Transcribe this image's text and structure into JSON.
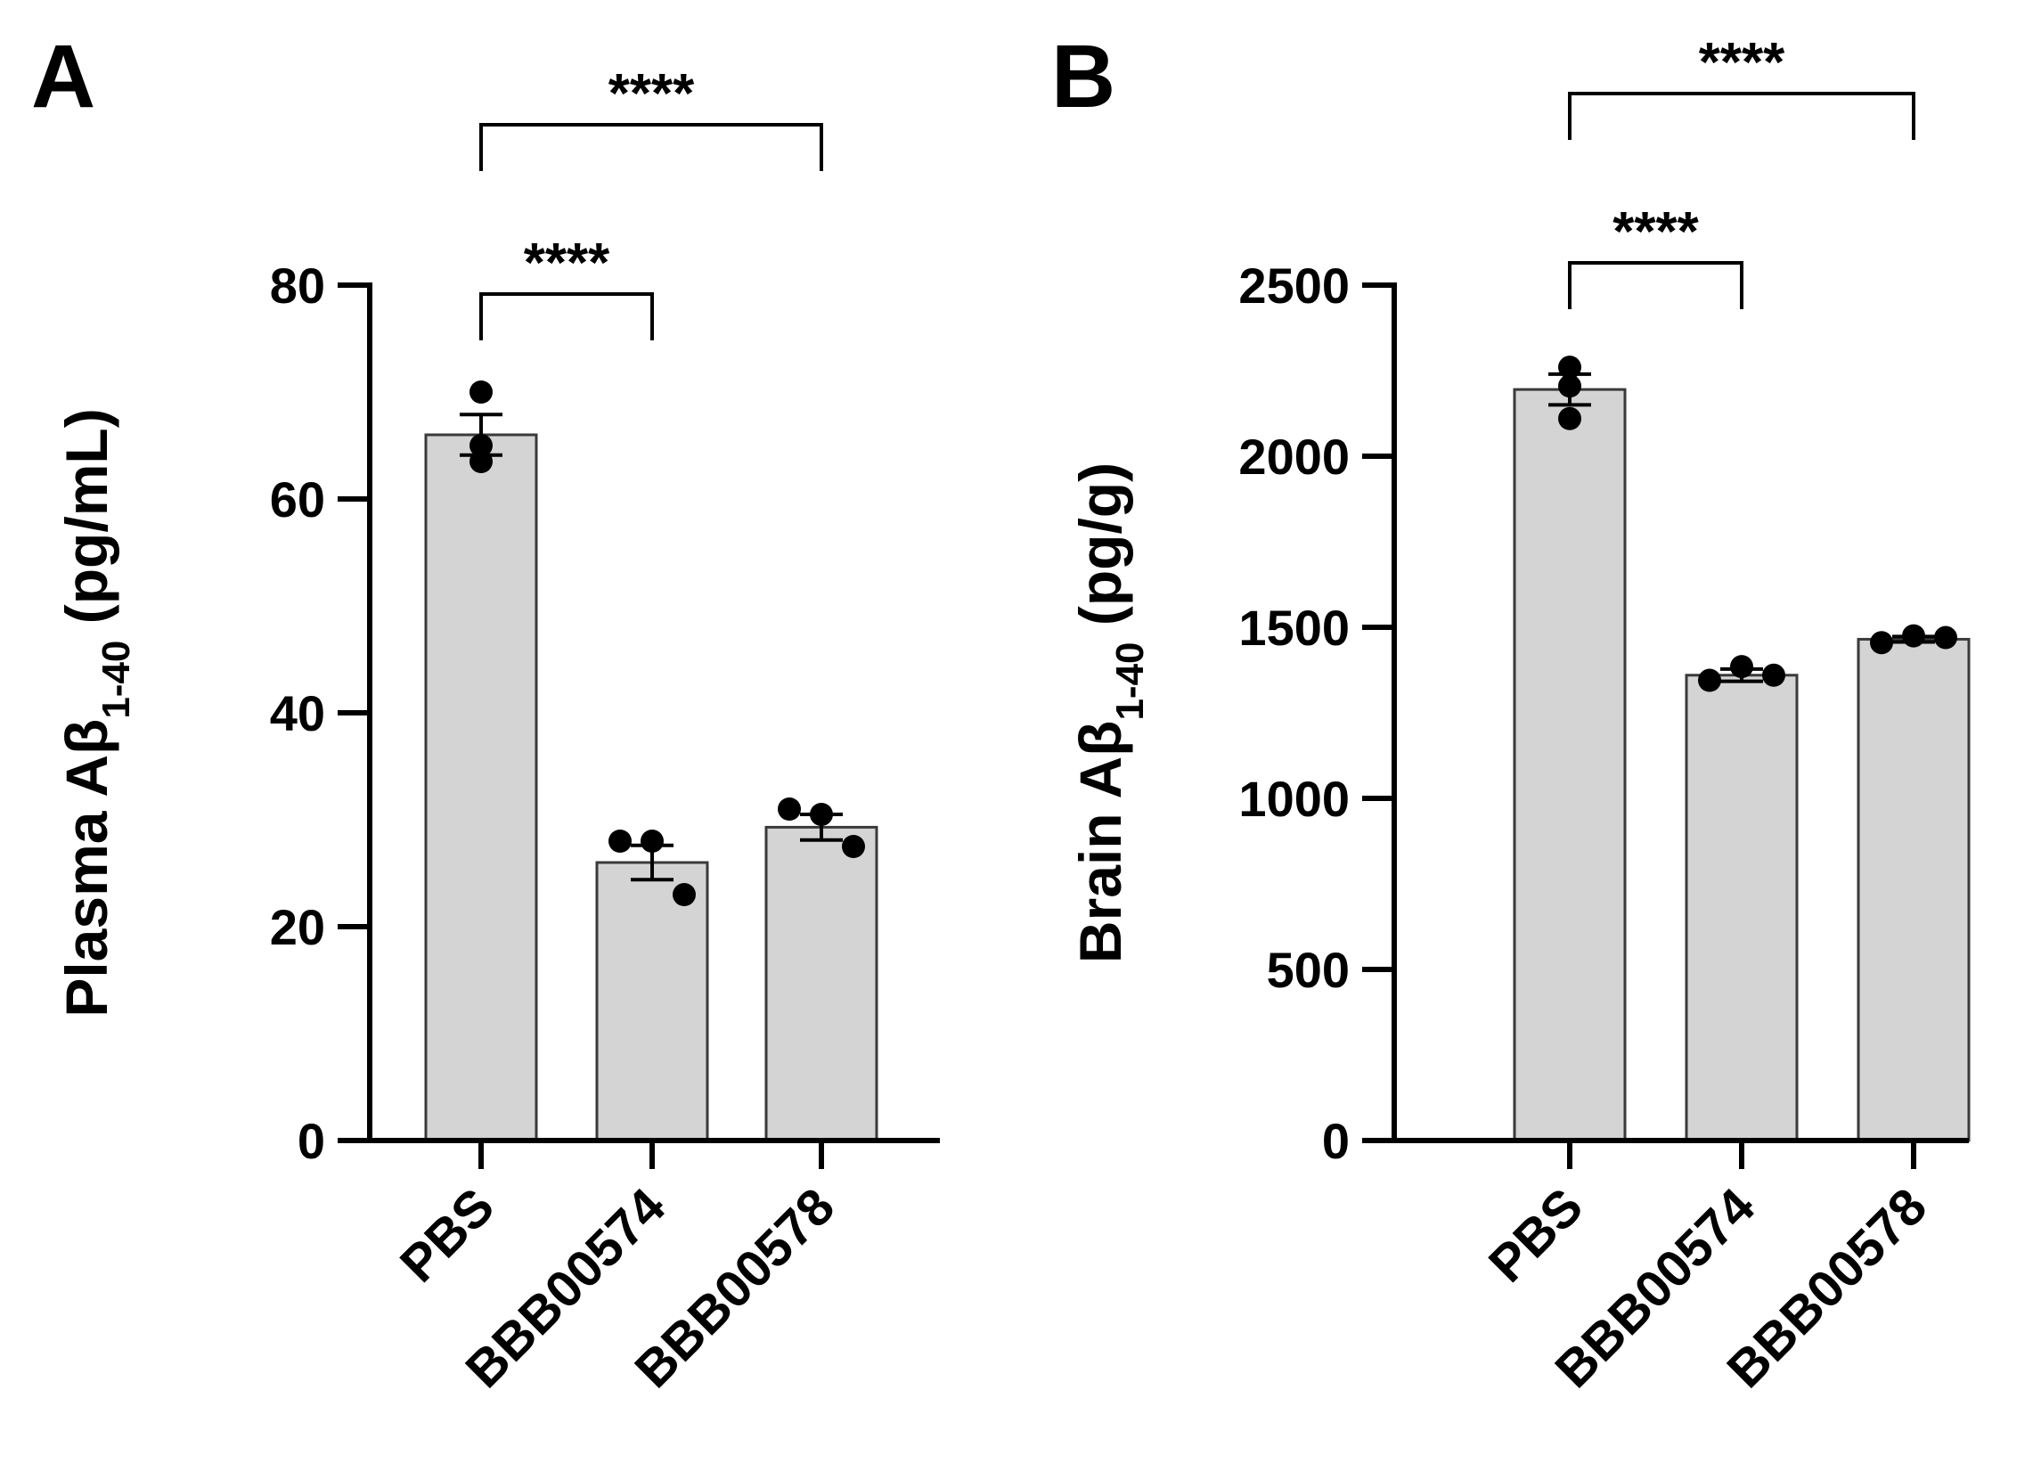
{
  "chart_data": [
    {
      "type": "bar",
      "panel_label": "A",
      "categories": [
        "PBS",
        "BBB00574",
        "BBB00578"
      ],
      "values": [
        66,
        26,
        29.3
      ],
      "errors": [
        1.9,
        1.6,
        1.2
      ],
      "points": [
        [
          70,
          65,
          63.5
        ],
        [
          28,
          28,
          23
        ],
        [
          31,
          30.5,
          27.5
        ]
      ],
      "ylim": [
        0,
        80
      ],
      "yticks": [
        0,
        20,
        40,
        60,
        80
      ],
      "ylabel": {
        "main": "Plasma Aβ",
        "sub": "1-40",
        "unit": " (pg/mL)"
      },
      "xlabel": "",
      "significance": [
        {
          "from": 0,
          "to": 1,
          "label": "****",
          "level": 80
        },
        {
          "from": 0,
          "to": 2,
          "label": "****",
          "level": 96
        }
      ]
    },
    {
      "type": "bar",
      "panel_label": "B",
      "categories": [
        "PBS",
        "BBB00574",
        "BBB00578"
      ],
      "values": [
        2195,
        1360,
        1465
      ],
      "errors": [
        45,
        18,
        8
      ],
      "points": [
        [
          2260,
          2205,
          2110
        ],
        [
          1345,
          1385,
          1360
        ],
        [
          1455,
          1475,
          1470
        ]
      ],
      "ylim": [
        0,
        2500
      ],
      "yticks": [
        0,
        500,
        1000,
        1500,
        2000,
        2500
      ],
      "ylabel": {
        "main": "Brain Aβ",
        "sub": "1-40",
        "unit": " (pg/g)"
      },
      "xlabel": "",
      "significance": [
        {
          "from": 0,
          "to": 1,
          "label": "****",
          "level": 2560
        },
        {
          "from": 0,
          "to": 2,
          "label": "****",
          "level": 3040
        }
      ]
    }
  ]
}
